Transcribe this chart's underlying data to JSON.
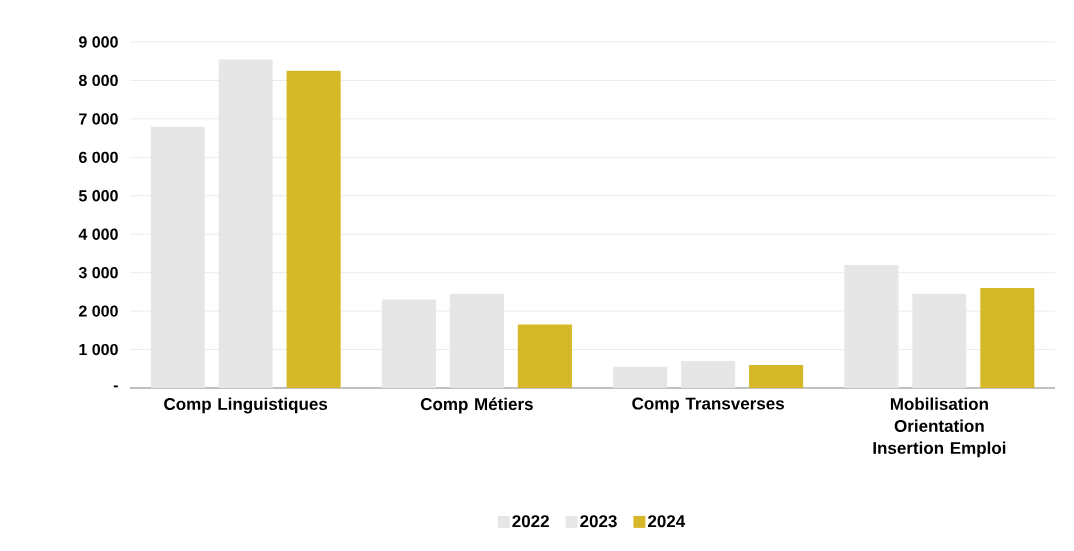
{
  "chart_data": {
    "type": "bar",
    "categories": [
      "Comp Linguistiques",
      "Comp Métiers",
      "Comp Transverses",
      "Mobilisation Orientation Insertion Emploi"
    ],
    "series": [
      {
        "name": "2022",
        "color": "#e6e6e6",
        "values": [
          6800,
          2300,
          550,
          3200
        ]
      },
      {
        "name": "2023",
        "color": "#e6e6e6",
        "values": [
          8550,
          2450,
          700,
          2450
        ]
      },
      {
        "name": "2024",
        "color": "#d5b827",
        "values": [
          8250,
          1650,
          600,
          2600
        ]
      }
    ],
    "ylim": [
      0,
      9000
    ],
    "yticks": [
      {
        "value": 0,
        "label": "-"
      },
      {
        "value": 1000,
        "label": "1 000"
      },
      {
        "value": 2000,
        "label": "2 000"
      },
      {
        "value": 3000,
        "label": "3 000"
      },
      {
        "value": 4000,
        "label": "4 000"
      },
      {
        "value": 5000,
        "label": "5 000"
      },
      {
        "value": 6000,
        "label": "6 000"
      },
      {
        "value": 7000,
        "label": "7 000"
      },
      {
        "value": 8000,
        "label": "8 000"
      },
      {
        "value": 9000,
        "label": "9 000"
      }
    ],
    "grid": "y",
    "legend": "bottom"
  }
}
